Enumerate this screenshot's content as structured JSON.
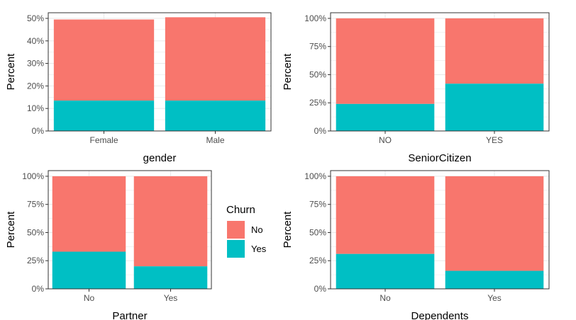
{
  "legend": {
    "title": "Churn",
    "items": [
      {
        "label": "No",
        "color": "#F8766D"
      },
      {
        "label": "Yes",
        "color": "#00BFC4"
      }
    ]
  },
  "colors": {
    "no": "#F8766D",
    "yes": "#00BFC4",
    "grid": "#ebebeb",
    "border": "#333333"
  },
  "chart_data": [
    {
      "type": "bar",
      "stacked": true,
      "xlabel": "gender",
      "ylabel": "Percent",
      "categories": [
        "Female",
        "Male"
      ],
      "series": [
        {
          "name": "No",
          "values": [
            36,
            37
          ]
        },
        {
          "name": "Yes",
          "values": [
            13.5,
            13.5
          ]
        }
      ],
      "ylim": [
        0,
        52.5
      ],
      "yticks": [
        0,
        10,
        20,
        30,
        40,
        50
      ],
      "ytick_labels": [
        "0%",
        "10%",
        "20%",
        "30%",
        "40%",
        "50%"
      ],
      "grid": true
    },
    {
      "type": "bar",
      "stacked": true,
      "xlabel": "SeniorCitizen",
      "ylabel": "Percent",
      "categories": [
        "NO",
        "YES"
      ],
      "series": [
        {
          "name": "No",
          "values": [
            76,
            58
          ]
        },
        {
          "name": "Yes",
          "values": [
            24,
            42
          ]
        }
      ],
      "ylim": [
        0,
        105
      ],
      "yticks": [
        0,
        25,
        50,
        75,
        100
      ],
      "ytick_labels": [
        "0%",
        "25%",
        "50%",
        "75%",
        "100%"
      ],
      "grid": true
    },
    {
      "type": "bar",
      "stacked": true,
      "xlabel": "Partner",
      "ylabel": "Percent",
      "categories": [
        "No",
        "Yes"
      ],
      "series": [
        {
          "name": "No",
          "values": [
            67,
            80
          ]
        },
        {
          "name": "Yes",
          "values": [
            33,
            20
          ]
        }
      ],
      "ylim": [
        0,
        105
      ],
      "yticks": [
        0,
        25,
        50,
        75,
        100
      ],
      "ytick_labels": [
        "0%",
        "25%",
        "50%",
        "75%",
        "100%"
      ],
      "grid": true
    },
    {
      "type": "bar",
      "stacked": true,
      "xlabel": "Dependents",
      "ylabel": "Percent",
      "categories": [
        "No",
        "Yes"
      ],
      "series": [
        {
          "name": "No",
          "values": [
            69,
            84
          ]
        },
        {
          "name": "Yes",
          "values": [
            31,
            16
          ]
        }
      ],
      "ylim": [
        0,
        105
      ],
      "yticks": [
        0,
        25,
        50,
        75,
        100
      ],
      "ytick_labels": [
        "0%",
        "25%",
        "50%",
        "75%",
        "100%"
      ],
      "grid": true
    }
  ]
}
